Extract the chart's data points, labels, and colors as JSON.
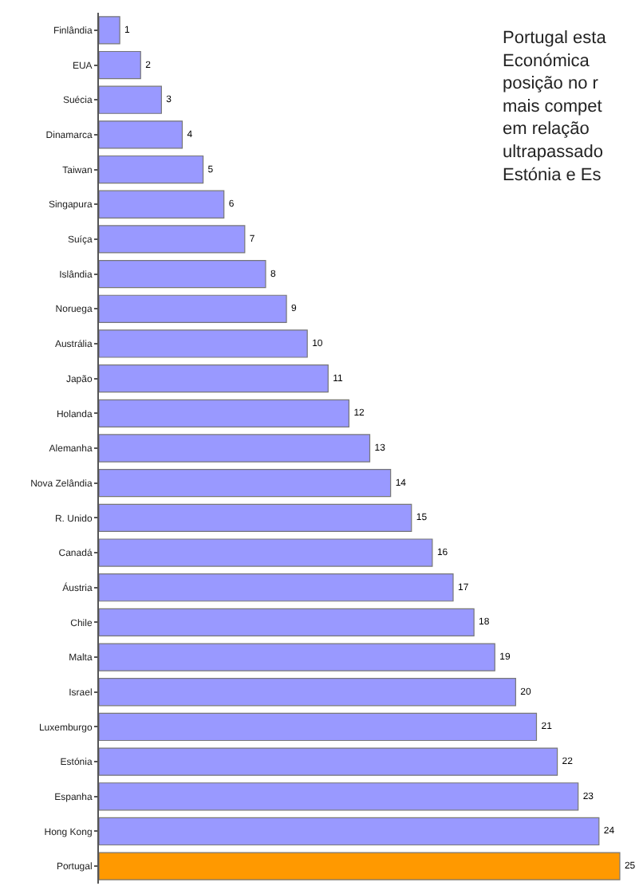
{
  "chart_data": {
    "type": "bar",
    "orientation": "horizontal",
    "categories": [
      "Finlândia",
      "EUA",
      "Suécia",
      "Dinamarca",
      "Taiwan",
      "Singapura",
      "Suíça",
      "Islândia",
      "Noruega",
      "Austrália",
      "Japão",
      "Holanda",
      "Alemanha",
      "Nova Zelândia",
      "R. Unido",
      "Canadá",
      "Áustria",
      "Chile",
      "Malta",
      "Israel",
      "Luxemburgo",
      "Estónia",
      "Espanha",
      "Hong Kong",
      "Portugal"
    ],
    "values": [
      1,
      2,
      3,
      4,
      5,
      6,
      7,
      8,
      9,
      10,
      11,
      12,
      13,
      14,
      15,
      16,
      17,
      18,
      19,
      20,
      21,
      22,
      23,
      24,
      25
    ],
    "colors": [
      "#9999ff",
      "#9999ff",
      "#9999ff",
      "#9999ff",
      "#9999ff",
      "#9999ff",
      "#9999ff",
      "#9999ff",
      "#9999ff",
      "#9999ff",
      "#9999ff",
      "#9999ff",
      "#9999ff",
      "#9999ff",
      "#9999ff",
      "#9999ff",
      "#9999ff",
      "#9999ff",
      "#9999ff",
      "#9999ff",
      "#9999ff",
      "#9999ff",
      "#9999ff",
      "#9999ff",
      "#ff9900"
    ],
    "data_labels": true,
    "tick_labels": "y",
    "annotations": [
      "Portugal esta\nEconómica\nposição no r\nmais compet\nem relação\nultrapassado\nEstónia e Es"
    ]
  }
}
